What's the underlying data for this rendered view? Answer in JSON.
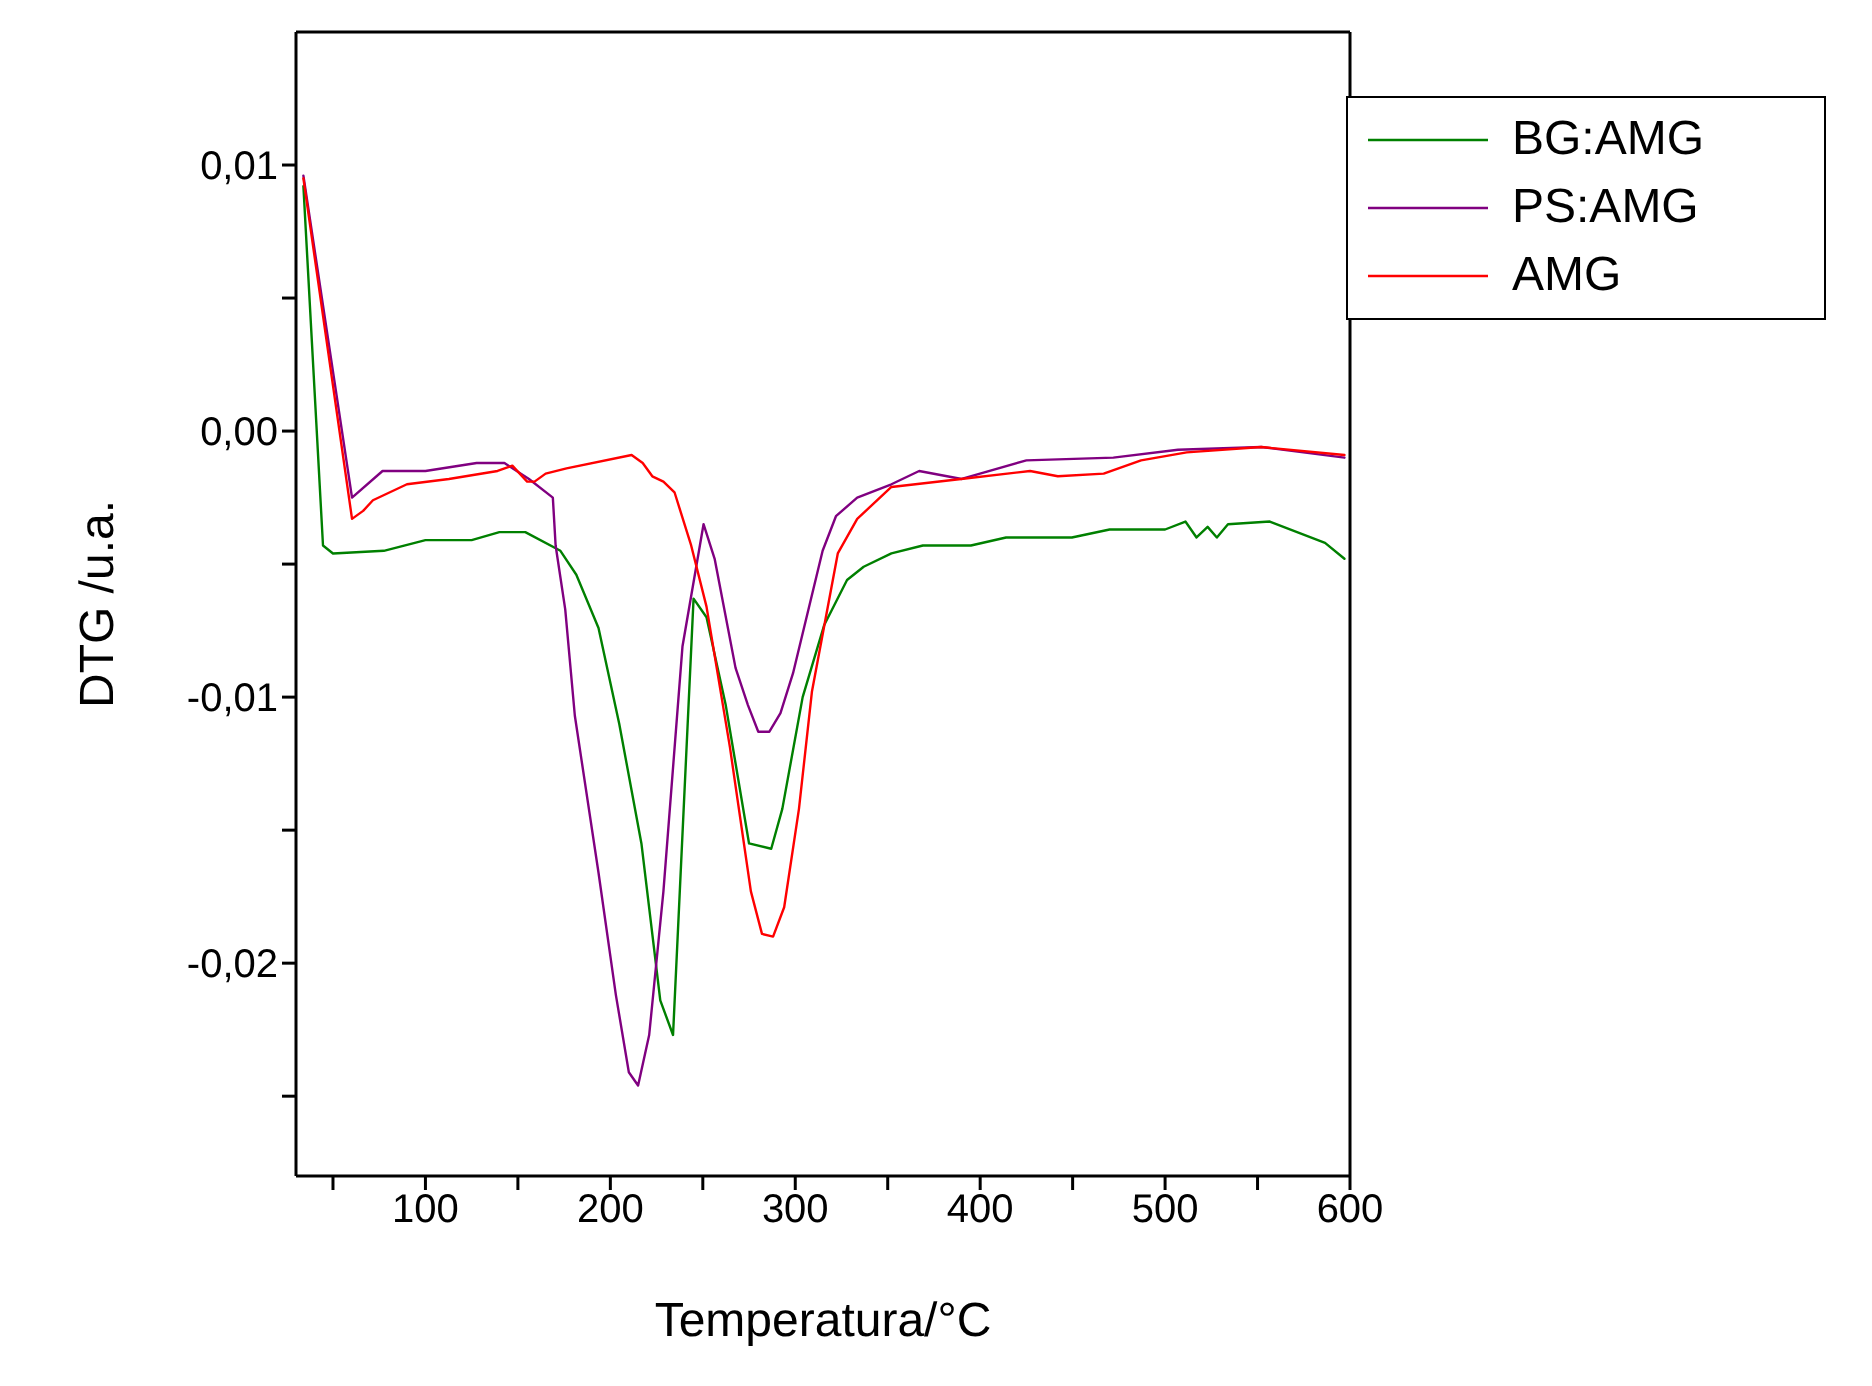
{
  "chart_data": {
    "type": "line",
    "xlabel": "Temperatura/°C",
    "ylabel": "DTG /u.a.",
    "xlim": [
      30,
      600
    ],
    "ylim": [
      -0.028,
      0.015
    ],
    "xticks": [
      {
        "value": 50,
        "label": null
      },
      100,
      {
        "value": 150,
        "label": null
      },
      200,
      {
        "value": 250,
        "label": null
      },
      300,
      {
        "value": 350,
        "label": null
      },
      400,
      {
        "value": 450,
        "label": null
      },
      500,
      {
        "value": 550,
        "label": null
      },
      600
    ],
    "yticks": [
      {
        "value": -0.025,
        "label": null
      },
      {
        "value": -0.02,
        "label": "-0,02"
      },
      {
        "value": -0.015,
        "label": null
      },
      {
        "value": -0.01,
        "label": "-0,01"
      },
      {
        "value": -0.005,
        "label": null
      },
      {
        "value": 0,
        "label": "0,00"
      },
      {
        "value": 0.005,
        "label": null
      },
      {
        "value": 0.01,
        "label": "0,01"
      }
    ],
    "legend": "top right",
    "marker": "none",
    "line_style": "solid",
    "series": [
      {
        "name": "BG:AMG",
        "color": "#008000",
        "x": [
          34,
          44.6,
          50,
          77.5,
          100,
          125,
          140,
          154,
          173,
          181.6,
          193.6,
          204.8,
          216.8,
          227,
          233.9,
          245,
          252,
          262.4,
          275,
          287,
          293,
          304,
          315.6,
          328,
          337,
          352,
          369,
          395,
          414,
          449.6,
          470,
          500,
          511,
          517,
          523,
          528,
          534,
          556.6,
          586.5,
          597
        ],
        "values": [
          0.0092,
          -0.0043,
          -0.0046,
          -0.0045,
          -0.0041,
          -0.0041,
          -0.0038,
          -0.0038,
          -0.0045,
          -0.0054,
          -0.0074,
          -0.011,
          -0.0155,
          -0.0214,
          -0.0227,
          -0.0063,
          -0.007,
          -0.0103,
          -0.0155,
          -0.0157,
          -0.0142,
          -0.01,
          -0.0073,
          -0.0056,
          -0.0051,
          -0.0046,
          -0.0043,
          -0.0043,
          -0.004,
          -0.004,
          -0.0037,
          -0.0037,
          -0.0034,
          -0.004,
          -0.0036,
          -0.004,
          -0.0035,
          -0.0034,
          -0.0042,
          -0.0048
        ]
      },
      {
        "name": "PS:AMG",
        "color": "#800080",
        "x": [
          34,
          60.3,
          76.8,
          100,
          127.7,
          142.7,
          156,
          168.9,
          170.4,
          175.6,
          180.8,
          193.6,
          203,
          210,
          215,
          221,
          228.7,
          239,
          250.4,
          256.4,
          267.7,
          274.4,
          280,
          286,
          292,
          298.8,
          314.8,
          322,
          333.5,
          352,
          367,
          390,
          425,
          472,
          507,
          552,
          597
        ],
        "values": [
          0.0096,
          -0.0025,
          -0.0015,
          -0.0015,
          -0.0012,
          -0.0012,
          -0.0018,
          -0.0025,
          -0.0043,
          -0.0067,
          -0.0107,
          -0.0166,
          -0.0212,
          -0.0241,
          -0.0246,
          -0.0227,
          -0.0173,
          -0.0081,
          -0.0035,
          -0.0048,
          -0.0089,
          -0.0103,
          -0.0113,
          -0.0113,
          -0.0106,
          -0.0091,
          -0.0045,
          -0.0032,
          -0.0025,
          -0.002,
          -0.0015,
          -0.0018,
          -0.0011,
          -0.001,
          -0.0007,
          -0.0006,
          -0.001
        ]
      },
      {
        "name": "AMG",
        "color": "#ff0000",
        "x": [
          34,
          60.3,
          66.3,
          71.6,
          90,
          112.7,
          139,
          147,
          155,
          159,
          165,
          176.3,
          211.5,
          217.5,
          222.7,
          228.7,
          234.7,
          243.7,
          252,
          264.7,
          276,
          282,
          288,
          294,
          302,
          309,
          323,
          333.5,
          352,
          389.7,
          427,
          442,
          466.8,
          487,
          511.7,
          552,
          597
        ],
        "values": [
          0.0095,
          -0.0033,
          -0.003,
          -0.0026,
          -0.002,
          -0.0018,
          -0.0015,
          -0.0013,
          -0.0019,
          -0.0019,
          -0.0016,
          -0.0014,
          -0.0009,
          -0.0012,
          -0.0017,
          -0.0019,
          -0.0023,
          -0.0043,
          -0.0066,
          -0.0119,
          -0.0173,
          -0.0189,
          -0.019,
          -0.0179,
          -0.0142,
          -0.0098,
          -0.0046,
          -0.0033,
          -0.0021,
          -0.0018,
          -0.0015,
          -0.0017,
          -0.0016,
          -0.0011,
          -0.0008,
          -0.0006,
          -0.0009
        ]
      }
    ]
  }
}
